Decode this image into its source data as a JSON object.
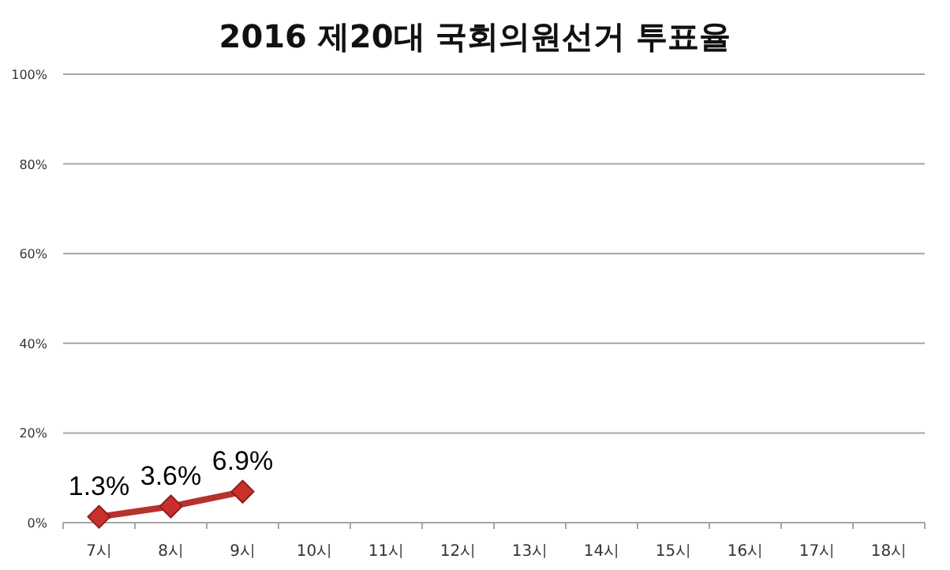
{
  "chart_data": {
    "type": "line",
    "title": "2016 제20대 국회의원선거 투표율",
    "categories": [
      "7시",
      "8시",
      "9시",
      "10시",
      "11시",
      "12시",
      "13시",
      "14시",
      "15시",
      "16시",
      "17시",
      "18시"
    ],
    "series": [
      {
        "color": "#b5322e",
        "values": [
          1.3,
          3.6,
          6.9,
          null,
          null,
          null,
          null,
          null,
          null,
          null,
          null,
          null
        ],
        "value_labels": [
          "1.3%",
          "3.6%",
          "6.9%",
          null,
          null,
          null,
          null,
          null,
          null,
          null,
          null,
          null
        ]
      }
    ],
    "ylim": [
      0,
      100
    ],
    "yticks": [
      {
        "value": 0,
        "label": "0%"
      },
      {
        "value": 20,
        "label": "20%"
      },
      {
        "value": 40,
        "label": "40%"
      },
      {
        "value": 60,
        "label": "60%"
      },
      {
        "value": 80,
        "label": "80%"
      },
      {
        "value": 100,
        "label": "100%"
      }
    ],
    "grid": "y",
    "marker": "diamond",
    "line_style": "solid"
  }
}
